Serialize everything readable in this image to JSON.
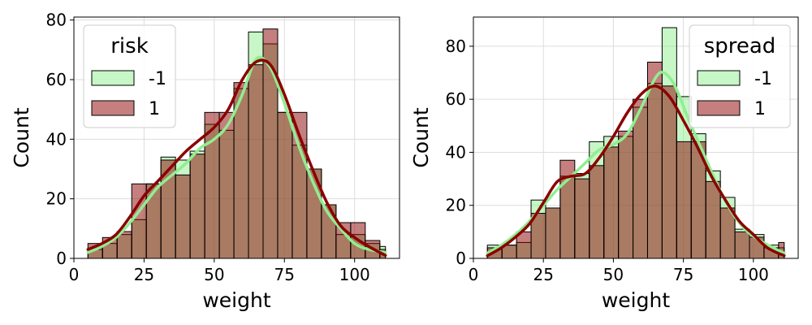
{
  "colors": {
    "series_neg": "#90ee90",
    "series_pos": "#8b0000",
    "grid": "#dddddd",
    "axis": "#000000"
  },
  "chart_data": [
    {
      "type": "bar",
      "subtype": "histogram-kde",
      "xlabel": "weight",
      "ylabel": "Count",
      "xlim": [
        0,
        116
      ],
      "ylim": [
        0,
        81
      ],
      "xticks": [
        0,
        25,
        50,
        75,
        100
      ],
      "yticks": [
        0,
        20,
        40,
        60,
        80
      ],
      "grid": true,
      "legend": {
        "title": "risk",
        "placement": "top-left"
      },
      "bin_edges": [
        5,
        10.2,
        15.4,
        20.6,
        25.8,
        31,
        36.2,
        41.4,
        46.6,
        51.8,
        57,
        62.2,
        67.4,
        72.6,
        77.8,
        83,
        88.2,
        93.4,
        98.6,
        103.8,
        109,
        111
      ],
      "series": [
        {
          "name": "-1",
          "color_key": "series_neg",
          "counts": [
            3,
            5,
            8,
            13,
            25,
            34,
            33,
            36,
            45,
            43,
            57,
            76,
            72,
            49,
            38,
            30,
            18,
            8,
            8,
            5,
            4
          ],
          "kde": [
            [
              5,
              2
            ],
            [
              10,
              4
            ],
            [
              15,
              7
            ],
            [
              20,
              12
            ],
            [
              25,
              18
            ],
            [
              30,
              24
            ],
            [
              35,
              28
            ],
            [
              40,
              32
            ],
            [
              45,
              37
            ],
            [
              50,
              40
            ],
            [
              55,
              45
            ],
            [
              60,
              55
            ],
            [
              65,
              67
            ],
            [
              70,
              64
            ],
            [
              75,
              52
            ],
            [
              80,
              38
            ],
            [
              85,
              26
            ],
            [
              90,
              16
            ],
            [
              95,
              10
            ],
            [
              100,
              5
            ],
            [
              105,
              3
            ],
            [
              111,
              2
            ]
          ]
        },
        {
          "name": "1",
          "color_key": "series_pos",
          "counts": [
            5,
            7,
            9,
            25,
            25,
            33,
            28,
            35,
            49,
            49,
            59,
            65,
            77,
            49,
            49,
            30,
            18,
            12,
            12,
            6,
            3
          ],
          "kde": [
            [
              5,
              3
            ],
            [
              10,
              5
            ],
            [
              15,
              8
            ],
            [
              20,
              14
            ],
            [
              25,
              21
            ],
            [
              30,
              26
            ],
            [
              35,
              31
            ],
            [
              40,
              36
            ],
            [
              45,
              40
            ],
            [
              50,
              44
            ],
            [
              55,
              50
            ],
            [
              60,
              60
            ],
            [
              65,
              66
            ],
            [
              70,
              65
            ],
            [
              75,
              55
            ],
            [
              80,
              42
            ],
            [
              85,
              30
            ],
            [
              90,
              19
            ],
            [
              95,
              11
            ],
            [
              100,
              7
            ],
            [
              105,
              4
            ],
            [
              111,
              1
            ]
          ]
        }
      ]
    },
    {
      "type": "bar",
      "subtype": "histogram-kde",
      "xlabel": "weight",
      "ylabel": "Count",
      "xlim": [
        0,
        116
      ],
      "ylim": [
        0,
        91
      ],
      "xticks": [
        0,
        25,
        50,
        75,
        100
      ],
      "yticks": [
        0,
        20,
        40,
        60,
        80
      ],
      "grid": true,
      "legend": {
        "title": "spread",
        "placement": "top-right"
      },
      "bin_edges": [
        5,
        10.2,
        15.4,
        20.6,
        25.8,
        31,
        36.2,
        41.4,
        46.6,
        51.8,
        57,
        62.2,
        67.4,
        72.6,
        77.8,
        83,
        88.2,
        93.4,
        98.6,
        103.8,
        109,
        111
      ],
      "series": [
        {
          "name": "-1",
          "color_key": "series_neg",
          "counts": [
            5,
            5,
            6,
            22,
            19,
            31,
            32,
            44,
            46,
            46,
            57,
            66,
            87,
            61,
            47,
            33,
            23,
            11,
            9,
            5,
            4
          ],
          "kde": [
            [
              5,
              2
            ],
            [
              10,
              5
            ],
            [
              15,
              9
            ],
            [
              20,
              14
            ],
            [
              25,
              20
            ],
            [
              30,
              26
            ],
            [
              35,
              31
            ],
            [
              40,
              36
            ],
            [
              45,
              41
            ],
            [
              50,
              43
            ],
            [
              55,
              47
            ],
            [
              60,
              57
            ],
            [
              65,
              68
            ],
            [
              68,
              70
            ],
            [
              72,
              65
            ],
            [
              77,
              52
            ],
            [
              82,
              40
            ],
            [
              87,
              28
            ],
            [
              92,
              18
            ],
            [
              97,
              11
            ],
            [
              102,
              7
            ],
            [
              107,
              4
            ],
            [
              111,
              2
            ]
          ]
        },
        {
          "name": "1",
          "color_key": "series_pos",
          "counts": [
            4,
            5,
            10,
            17,
            19,
            37,
            30,
            35,
            42,
            48,
            60,
            74,
            65,
            44,
            44,
            29,
            19,
            10,
            8,
            4,
            6
          ],
          "kde": [
            [
              5,
              1
            ],
            [
              10,
              4
            ],
            [
              15,
              8
            ],
            [
              20,
              13
            ],
            [
              25,
              21
            ],
            [
              30,
              29
            ],
            [
              35,
              31
            ],
            [
              40,
              32
            ],
            [
              45,
              38
            ],
            [
              50,
              46
            ],
            [
              55,
              55
            ],
            [
              60,
              62
            ],
            [
              65,
              65
            ],
            [
              70,
              61
            ],
            [
              75,
              52
            ],
            [
              80,
              42
            ],
            [
              85,
              31
            ],
            [
              90,
              22
            ],
            [
              95,
              14
            ],
            [
              100,
              9
            ],
            [
              105,
              4
            ],
            [
              111,
              1
            ]
          ]
        }
      ]
    }
  ]
}
